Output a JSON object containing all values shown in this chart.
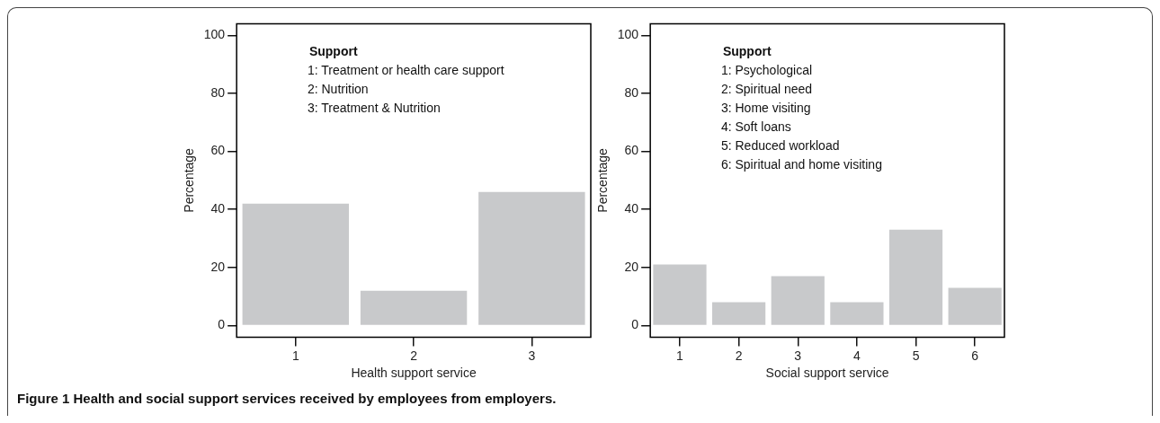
{
  "chart_data": [
    {
      "type": "bar",
      "categories": [
        "1",
        "2",
        "3"
      ],
      "values": [
        42,
        12,
        46
      ],
      "color": "#c8c9cb",
      "ylim": [
        -4,
        104
      ],
      "yticks": [
        0,
        20,
        40,
        60,
        80,
        100
      ],
      "xlabel": "Health support service",
      "ylabel": "Percentage",
      "legend_title": "Support",
      "annotations": [
        "1: Treatment or health care support",
        "2: Nutrition",
        "3: Treatment & Nutrition"
      ]
    },
    {
      "type": "bar",
      "categories": [
        "1",
        "2",
        "3",
        "4",
        "5",
        "6"
      ],
      "values": [
        21,
        8,
        17,
        8,
        33,
        13
      ],
      "color": "#c8c9cb",
      "ylim": [
        -4,
        104
      ],
      "yticks": [
        0,
        20,
        40,
        60,
        80,
        100
      ],
      "xlabel": "Social support service",
      "ylabel": "Percentage",
      "legend_title": "Support",
      "annotations": [
        "1: Psychological",
        "2: Spiritual need",
        "3: Home visiting",
        "4: Soft loans",
        "5: Reduced workload",
        "6: Spiritual and home visiting"
      ]
    },
    {
      "type": "other",
      "annotations": [
        "Figure 1 Health and social support services received by employees from employers."
      ]
    }
  ]
}
